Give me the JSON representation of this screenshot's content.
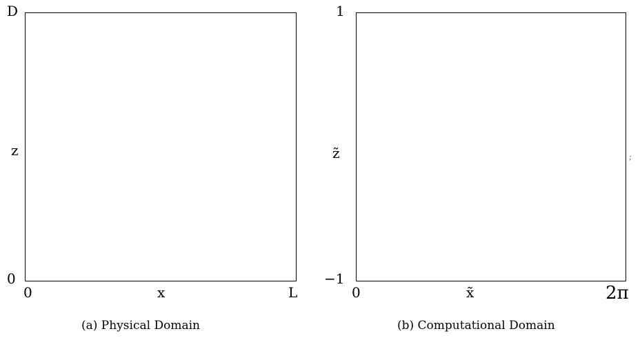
{
  "panel_a": {
    "y_top": "D",
    "y_mid": "z",
    "y_bottom": "0",
    "x_left": "0",
    "x_mid": "x",
    "x_right": "L",
    "caption": "(a) Physical Domain"
  },
  "panel_b": {
    "y_top": "1",
    "y_mid": "z̃",
    "y_bottom": "−1",
    "x_left": "0",
    "x_mid": "x̃",
    "x_right": "2π",
    "caption": "(b) Computational Domain",
    "side_mark": ";"
  }
}
